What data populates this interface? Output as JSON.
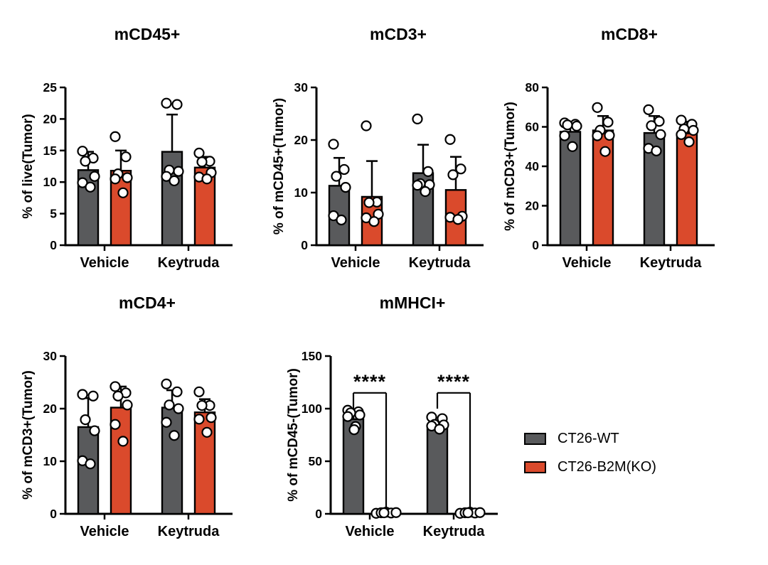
{
  "figure": {
    "background": "#FFFFFF",
    "axis_color": "#000000",
    "point_fill": "#FFFFFF"
  },
  "legend": {
    "items": [
      {
        "label": "CT26-WT",
        "color": "#595A5C"
      },
      {
        "label": "CT26-B2M(KO)",
        "color": "#DA4A2C"
      }
    ]
  },
  "chart_data": [
    {
      "type": "bar",
      "title": "mCD45+",
      "ylabel": "% of live(Tumor)",
      "ylim": [
        0,
        25
      ],
      "yticks": [
        0,
        5,
        10,
        15,
        20,
        25
      ],
      "categories": [
        "Vehicle",
        "Keytruda"
      ],
      "series": [
        {
          "name": "CT26-WT",
          "means": [
            11.9,
            14.8
          ],
          "sd_upper": [
            14.8,
            20.7
          ],
          "points": [
            [
              14.9,
              13.8,
              13.3,
              10.9,
              9.9,
              9.2
            ],
            [
              22.5,
              22.3,
              11.9,
              11.7,
              10.9,
              10.2
            ]
          ]
        },
        {
          "name": "CT26-B2M(KO)",
          "means": [
            11.8,
            12.3
          ],
          "sd_upper": [
            15.0,
            14.0
          ],
          "points": [
            [
              17.2,
              14.0,
              11.3,
              10.7,
              10.5,
              8.3
            ],
            [
              14.6,
              13.3,
              13.2,
              11.5,
              10.8,
              10.5
            ]
          ]
        }
      ]
    },
    {
      "type": "bar",
      "title": "mCD3+",
      "ylabel": "% of mCD45+(Tumor)",
      "ylim": [
        0,
        30
      ],
      "yticks": [
        0,
        10,
        20,
        30
      ],
      "categories": [
        "Vehicle",
        "Keytruda"
      ],
      "series": [
        {
          "name": "CT26-WT",
          "means": [
            11.3,
            13.7
          ],
          "sd_upper": [
            16.6,
            19.1
          ],
          "points": [
            [
              19.2,
              14.4,
              13.1,
              11.0,
              5.6,
              4.8
            ],
            [
              24.0,
              14.0,
              11.7,
              11.5,
              11.4,
              10.2
            ]
          ]
        },
        {
          "name": "CT26-B2M(KO)",
          "means": [
            9.2,
            10.5
          ],
          "sd_upper": [
            16.0,
            16.8
          ],
          "points": [
            [
              22.7,
              8.2,
              8.1,
              5.9,
              5.2,
              4.5
            ],
            [
              20.1,
              14.5,
              13.4,
              5.5,
              5.3,
              4.9
            ]
          ]
        }
      ]
    },
    {
      "type": "bar",
      "title": "mCD8+",
      "ylabel": "% of mCD3+(Tumor)",
      "ylim": [
        0,
        80
      ],
      "yticks": [
        0,
        20,
        40,
        60,
        80
      ],
      "categories": [
        "Vehicle",
        "Keytruda"
      ],
      "series": [
        {
          "name": "CT26-WT",
          "means": [
            57.5,
            56.9
          ],
          "sd_upper": [
            61.5,
            65.5
          ],
          "points": [
            [
              62.0,
              61.3,
              61.0,
              60.4,
              55.5,
              50.0
            ],
            [
              68.7,
              62.8,
              60.6,
              56.1,
              49.1,
              47.8
            ]
          ]
        },
        {
          "name": "CT26-B2M(KO)",
          "means": [
            58.2,
            56.7
          ],
          "sd_upper": [
            65.5,
            62.6
          ],
          "points": [
            [
              69.8,
              62.4,
              58.3,
              55.7,
              55.5,
              47.5
            ],
            [
              63.4,
              61.3,
              58.9,
              58.2,
              56.1,
              52.4
            ]
          ]
        }
      ]
    },
    {
      "type": "bar",
      "title": "mCD4+",
      "ylabel": "% of mCD3+(Tumor)",
      "ylim": [
        0,
        30
      ],
      "yticks": [
        0,
        10,
        20,
        30
      ],
      "categories": [
        "Vehicle",
        "Keytruda"
      ],
      "series": [
        {
          "name": "CT26-WT",
          "means": [
            16.5,
            20.2
          ],
          "sd_upper": [
            22.0,
            23.5
          ],
          "points": [
            [
              22.7,
              22.4,
              17.9,
              15.8,
              10.1,
              9.5
            ],
            [
              24.7,
              23.2,
              20.7,
              20.0,
              17.4,
              14.9
            ]
          ]
        },
        {
          "name": "CT26-B2M(KO)",
          "means": [
            20.2,
            19.3
          ],
          "sd_upper": [
            24.2,
            21.8
          ],
          "points": [
            [
              24.2,
              23.0,
              22.4,
              20.7,
              17.0,
              13.8
            ],
            [
              23.2,
              20.6,
              20.6,
              18.3,
              18.0,
              15.5
            ]
          ]
        }
      ]
    },
    {
      "type": "bar",
      "title": "mMHCI+",
      "ylabel": "% of mCD45-(Tumor)",
      "ylim": [
        0,
        150
      ],
      "yticks": [
        0,
        50,
        100,
        150
      ],
      "categories": [
        "Vehicle",
        "Keytruda"
      ],
      "series": [
        {
          "name": "CT26-WT",
          "means": [
            90,
            82
          ],
          "sd_upper": [
            95,
            87
          ],
          "points": [
            [
              98.5,
              97,
              96,
              94,
              92.5,
              83,
              80
            ],
            [
              92,
              90.5,
              85,
              84.5,
              83.5,
              80.5
            ]
          ]
        },
        {
          "name": "CT26-B2M(KO)",
          "means": [
            1,
            1
          ],
          "sd_upper": [
            2.5,
            2.5
          ],
          "points": [
            [
              0.5,
              1,
              1.5,
              0.8,
              1.2,
              1
            ],
            [
              0.5,
              1,
              1.5,
              0.8,
              1.2,
              1
            ]
          ]
        }
      ],
      "sig": [
        {
          "category": "Vehicle",
          "label": "****",
          "line_y": 115,
          "left_end_y": 100,
          "right_end_y": 6
        },
        {
          "category": "Keytruda",
          "label": "****",
          "line_y": 115,
          "left_end_y": 100,
          "right_end_y": 6
        }
      ]
    }
  ]
}
